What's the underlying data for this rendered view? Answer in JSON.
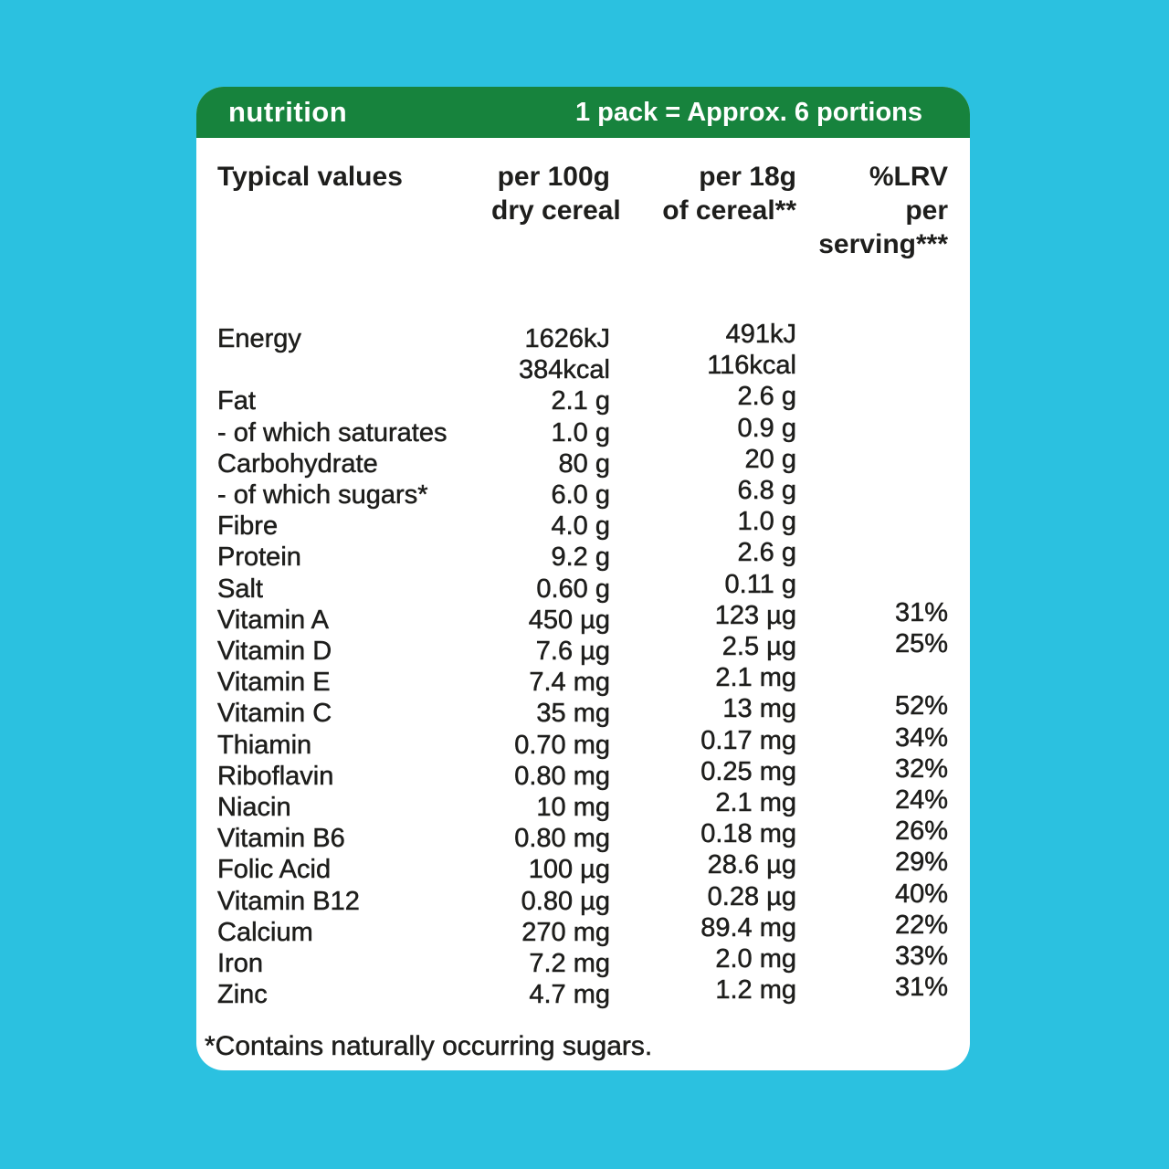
{
  "colors": {
    "background": "#2bc1e0",
    "header_bar": "#17833d",
    "card": "#ffffff",
    "text": "#1e1e1c",
    "header_text": "#ffffff"
  },
  "header": {
    "title": "nutrition",
    "portions": "1 pack = Approx. 6 portions"
  },
  "table": {
    "column_headers": {
      "typical_values": "Typical values",
      "per_100g": [
        "per 100g",
        "dry cereal"
      ],
      "per_18g": [
        "per 18g",
        "of cereal**"
      ],
      "lrv": [
        "%LRV",
        "per",
        "serving***"
      ]
    },
    "rows": [
      {
        "name": "Energy",
        "per100g": "1626kJ",
        "per18g": "491kJ",
        "lrv": ""
      },
      {
        "name": "",
        "per100g": "384kcal",
        "per18g": "116kcal",
        "lrv": ""
      },
      {
        "name": "Fat",
        "per100g": "2.1 g",
        "per18g": "2.6 g",
        "lrv": ""
      },
      {
        "name": "- of which saturates",
        "per100g": "1.0 g",
        "per18g": "0.9 g",
        "lrv": ""
      },
      {
        "name": "Carbohydrate",
        "per100g": "80 g",
        "per18g": "20 g",
        "lrv": ""
      },
      {
        "name": "- of which sugars*",
        "per100g": "6.0 g",
        "per18g": "6.8 g",
        "lrv": ""
      },
      {
        "name": "Fibre",
        "per100g": "4.0 g",
        "per18g": "1.0 g",
        "lrv": ""
      },
      {
        "name": "Protein",
        "per100g": "9.2 g",
        "per18g": "2.6 g",
        "lrv": ""
      },
      {
        "name": "Salt",
        "per100g": "0.60 g",
        "per18g": "0.11 g",
        "lrv": ""
      },
      {
        "name": "Vitamin A",
        "per100g": "450 µg",
        "per18g": "123 µg",
        "lrv": "31%"
      },
      {
        "name": "Vitamin D",
        "per100g": "7.6 µg",
        "per18g": "2.5 µg",
        "lrv": "25%"
      },
      {
        "name": "Vitamin E",
        "per100g": "7.4 mg",
        "per18g": "2.1 mg",
        "lrv": ""
      },
      {
        "name": "Vitamin C",
        "per100g": "35 mg",
        "per18g": "13 mg",
        "lrv": "52%"
      },
      {
        "name": "Thiamin",
        "per100g": "0.70 mg",
        "per18g": "0.17 mg",
        "lrv": "34%"
      },
      {
        "name": "Riboflavin",
        "per100g": "0.80 mg",
        "per18g": "0.25 mg",
        "lrv": "32%"
      },
      {
        "name": "Niacin",
        "per100g": "10 mg",
        "per18g": "2.1 mg",
        "lrv": "24%"
      },
      {
        "name": "Vitamin B6",
        "per100g": "0.80 mg",
        "per18g": "0.18 mg",
        "lrv": "26%"
      },
      {
        "name": "Folic Acid",
        "per100g": "100 µg",
        "per18g": "28.6 µg",
        "lrv": "29%"
      },
      {
        "name": "Vitamin B12",
        "per100g": "0.80 µg",
        "per18g": "0.28 µg",
        "lrv": "40%"
      },
      {
        "name": "Calcium",
        "per100g": "270 mg",
        "per18g": "89.4 mg",
        "lrv": "22%"
      },
      {
        "name": "Iron",
        "per100g": "7.2 mg",
        "per18g": "2.0 mg",
        "lrv": "33%"
      },
      {
        "name": "Zinc",
        "per100g": "4.7 mg",
        "per18g": "1.2 mg",
        "lrv": "31%"
      }
    ]
  },
  "footnote": "*Contains naturally occurring sugars."
}
